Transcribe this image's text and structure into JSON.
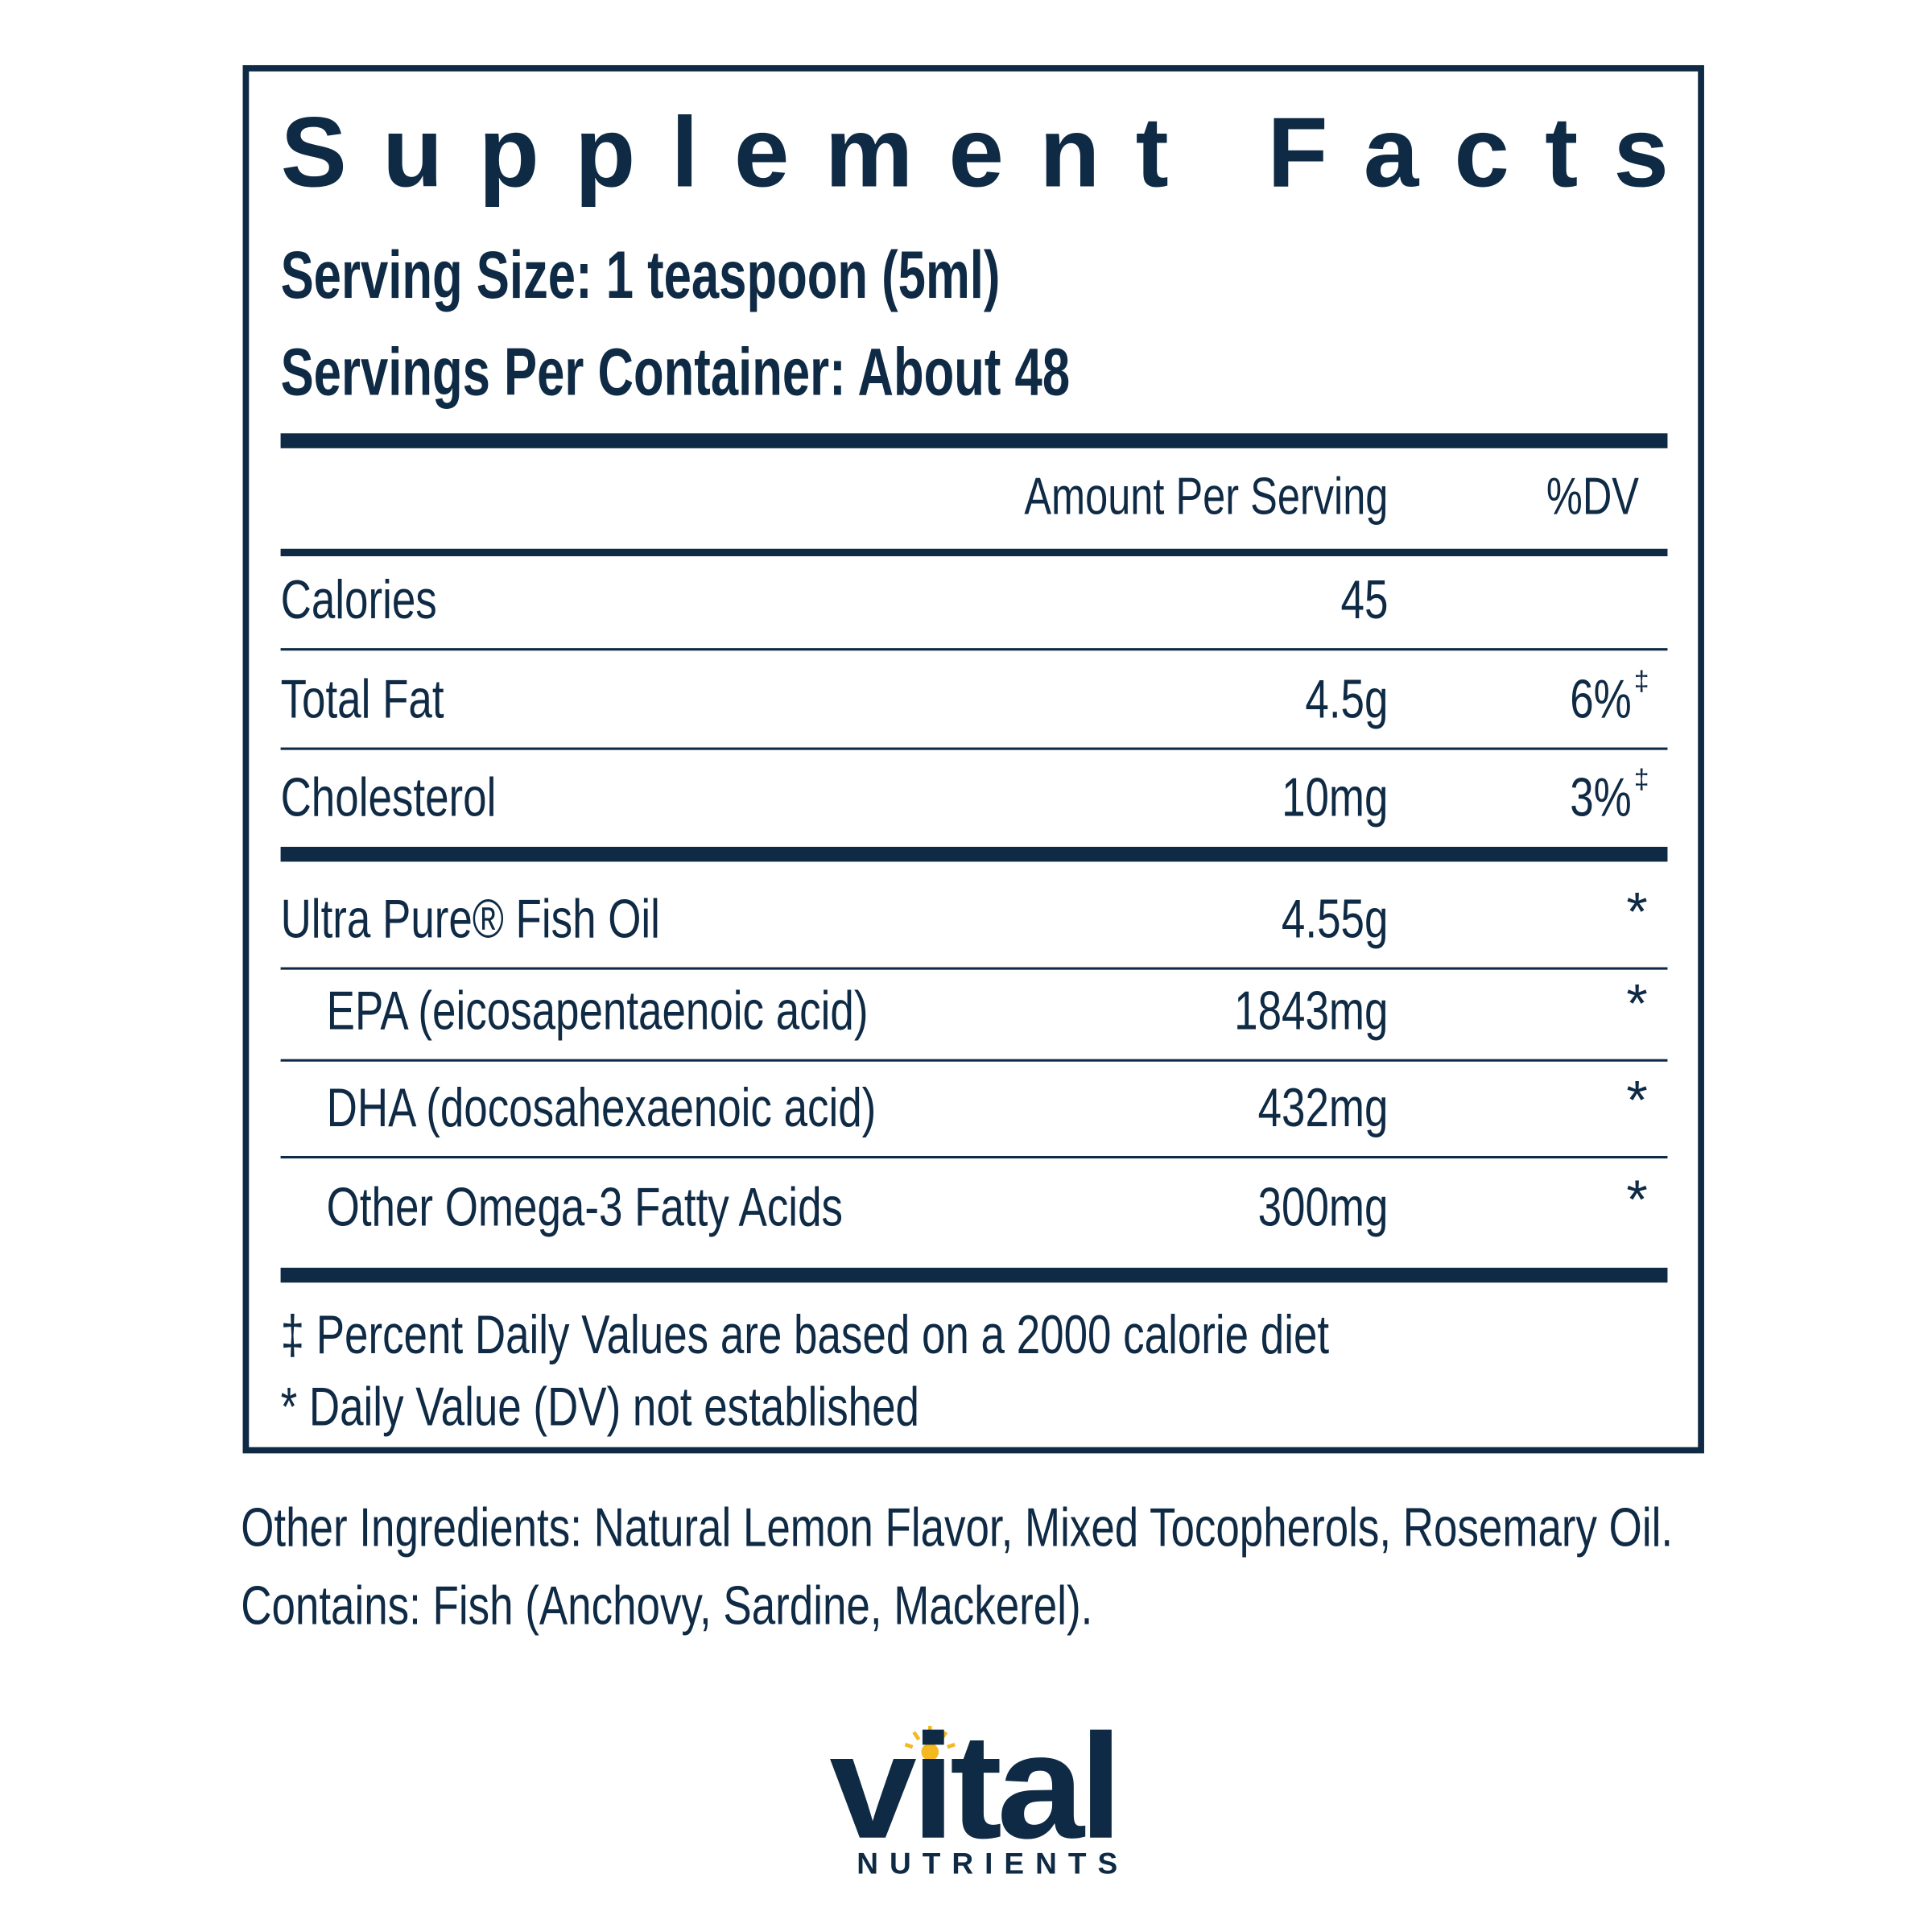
{
  "title": "Supplement Facts",
  "serving_size": "Serving Size: 1 teaspoon (5ml)",
  "servings_per_container": "Servings Per Container: About 48",
  "header": {
    "amount": "Amount Per Serving",
    "dv": "%DV"
  },
  "nutrients": [
    {
      "name": "Calories",
      "amount": "45"
    },
    {
      "name": "Total Fat",
      "amount": "4.5g",
      "dv": "6%",
      "dv_mark": "‡"
    },
    {
      "name": "Cholesterol",
      "amount": "10mg",
      "dv": "3%",
      "dv_mark": "‡"
    }
  ],
  "fish_oil": {
    "name": "Ultra Pure® Fish Oil",
    "amount": "4.55g",
    "dv": "*",
    "sub_rows": [
      {
        "name": "EPA (eicosapentaenoic acid)",
        "amount": "1843mg",
        "dv": "*"
      },
      {
        "name": "DHA (docosahexaenoic acid)",
        "amount": "432mg",
        "dv": "*"
      },
      {
        "name": "Other Omega-3 Fatty Acids",
        "amount": "300mg",
        "dv": "*"
      }
    ]
  },
  "footnotes": [
    "‡ Percent Daily Values are based on a 2000 calorie diet",
    "* Daily Value (DV) not established"
  ],
  "other_ingredients": "Other Ingredients: Natural Lemon Flavor, Mixed Tocopherols, Rosemary Oil.",
  "contains": "Contains: Fish (Anchovy, Sardine, Mackerel).",
  "logo": {
    "brand": "vital",
    "sub": "NUTRIENTS"
  }
}
